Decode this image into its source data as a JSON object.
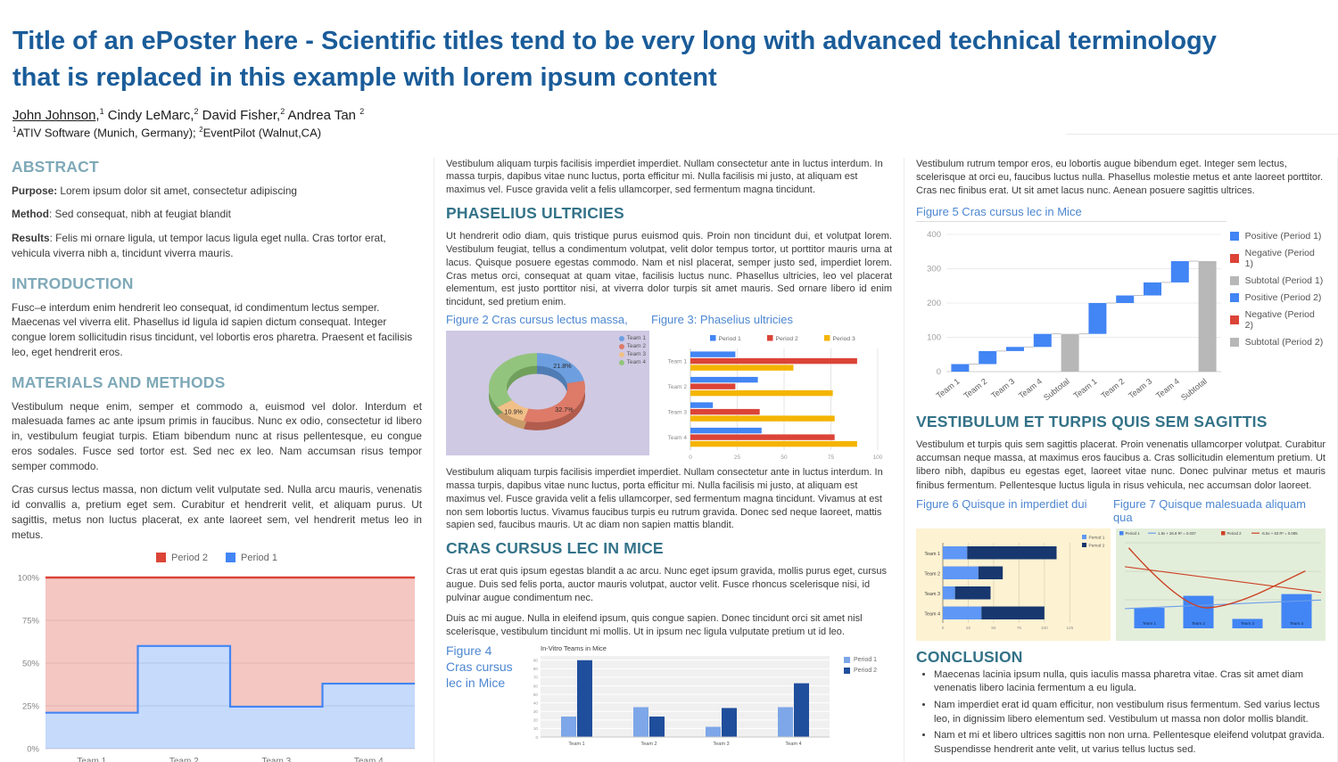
{
  "header": {
    "title": "Title of an ePoster here - Scientific titles tend to be very long with advanced technical terminology that is replaced in this example with lorem ipsum content",
    "authors": [
      {
        "name": "John Johnson",
        "sep": ",",
        "sup": "1",
        "underline": true
      },
      {
        "name": " Cindy LeMarc",
        "sep": ",",
        "sup": "2",
        "underline": false
      },
      {
        "name": " David Fisher",
        "sep": ",",
        "sup": "2",
        "underline": false
      },
      {
        "name": " Andrea Tan ",
        "sep": "",
        "sup": "2",
        "underline": false
      }
    ],
    "affiliations": [
      {
        "sup": "1",
        "text": "ATIV Software (Munich, Germany);  "
      },
      {
        "sup": "2",
        "text": "EventPilot (Walnut,CA)"
      }
    ]
  },
  "left": {
    "abstract": {
      "heading": "ABSTRACT",
      "purpose_label": "Purpose:",
      "purpose_text": " Lorem ipsum dolor sit amet, consectetur adipiscing",
      "method_label": "Method",
      "method_text": ": Sed consequat, nibh at feugiat blandit",
      "results_label": "Results",
      "results_text": ": Felis mi ornare ligula, ut tempor lacus ligula eget nulla. Cras tortor erat, vehicula viverra nibh a, tincidunt viverra mauris."
    },
    "introduction": {
      "heading": "INTRODUCTION",
      "text": "Fusc–e interdum enim hendrerit leo consequat, id condimentum lectus semper. Maecenas vel viverra elit. Phasellus id ligula id sapien dictum consequat. Integer congue lorem sollicitudin risus tincidunt, vel lobortis eros pharetra. Praesent et facilisis leo, eget hendrerit eros."
    },
    "methods": {
      "heading": "MATERIALS AND METHODS",
      "p1": "Vestibulum neque enim, semper et commodo a, euismod vel dolor. Interdum et malesuada fames ac ante ipsum primis in faucibus. Nunc ex odio, consectetur id libero in, vestibulum feugiat turpis. Etiam bibendum nunc at risus pellentesque, eu congue eros sodales. Fusce sed tortor est. Sed nec ex leo. Nam accumsan risus tempor semper commodo.",
      "p2": "Cras cursus lectus massa, non dictum velit vulputate sed. Nulla arcu mauris, venenatis id convallis a, pretium eget sem. Curabitur et hendrerit velit, et aliquam purus. Ut sagittis, metus non luctus placerat, ex ante laoreet sem, vel hendrerit metus leo in metus."
    }
  },
  "middle": {
    "intro_p": "Vestibulum aliquam turpis facilisis imperdiet imperdiet. Nullam consectetur ante in luctus interdum. In massa turpis, dapibus vitae nunc luctus, porta efficitur mi. Nulla facilisis mi justo, at aliquam est maximus vel. Fusce gravida velit a felis ullamcorper, sed fermentum magna tincidunt.",
    "phaselius": {
      "heading": "PHASELIUS ULTRICIES",
      "text": "Ut hendrerit odio diam, quis tristique purus euismod quis. Proin non tincidunt dui, et volutpat lorem. Vestibulum feugiat, tellus a condimentum volutpat, velit dolor tempus tortor, ut porttitor mauris urna at lacus. Quisque posuere egestas commodo. Nam et nisl placerat, semper justo sed, imperdiet lorem. Cras metus orci, consequat at quam vitae, facilisis luctus nunc. Phasellus ultricies, leo vel placerat elementum, est justo porttitor nisi, at viverra dolor turpis sit amet mauris. Sed ornare libero id enim tincidunt, sed pretium enim."
    },
    "fig2_caption": "Figure 2 Cras cursus lectus massa,",
    "fig3_caption": "Figure 3:  Phaselius ultricies",
    "after_figs_p": "Vestibulum aliquam turpis facilisis imperdiet imperdiet. Nullam consectetur ante in luctus interdum. In massa turpis, dapibus vitae nunc luctus, porta efficitur mi. Nulla facilisis mi justo, at aliquam est maximus vel. Fusce gravida velit a felis ullamcorper, sed fermentum magna tincidunt. Vivamus at est non sem lobortis luctus. Vivamus faucibus turpis eu rutrum gravida. Donec sed neque laoreet, mattis sapien sed, faucibus mauris. Ut ac diam non sapien mattis blandit.",
    "cras": {
      "heading": "CRAS CURSUS LEC IN MICE",
      "p1": "Cras ut erat quis ipsum egestas blandit a ac arcu. Nunc eget ipsum gravida, mollis purus eget, cursus augue. Duis sed felis porta, auctor mauris volutpat, auctor velit. Fusce rhoncus scelerisque nisi, id pulvinar augue condimentum nec.",
      "p2": "Duis ac mi augue. Nulla in eleifend ipsum, quis congue sapien. Donec tincidunt orci sit amet nisl scelerisque, vestibulum tincidunt mi mollis. Ut in ipsum nec ligula vulputate pretium ut id leo."
    },
    "fig4_caption": "Figure 4 Cras cursus lec in Mice"
  },
  "right": {
    "intro_p": "Vestibulum rutrum tempor eros, eu lobortis augue bibendum eget. Integer sem lectus, scelerisque at orci eu, faucibus luctus nulla. Phasellus molestie metus et ante laoreet porttitor. Cras nec finibus erat. Ut sit amet lacus nunc. Aenean posuere sagittis ultrices.",
    "fig5_caption": "Figure 5 Cras cursus lec in Mice",
    "vestibulum": {
      "heading": "VESTIBULUM ET TURPIS QUIS SEM SAGITTIS",
      "text": "Vestibulum et turpis quis sem sagittis placerat. Proin venenatis ullamcorper volutpat. Curabitur accumsan neque massa, at maximus eros faucibus a. Cras sollicitudin elementum pretium. Ut libero nibh, dapibus eu egestas eget, laoreet vitae nunc. Donec pulvinar metus et mauris finibus fermentum. Pellentesque luctus ligula in risus vehicula, nec accumsan dolor laoreet."
    },
    "fig6_caption": "Figure 6 Quisque in imperdiet dui",
    "fig7_caption": "Figure 7 Quisque malesuada aliquam qua",
    "conclusion": {
      "heading": "CONCLUSION",
      "bullets": [
        "Maecenas lacinia ipsum nulla, quis iaculis massa pharetra vitae. Cras sit amet diam venenatis libero lacinia fermentum a eu ligula.",
        "Nam imperdiet erat id quam efficitur, non vestibulum risus fermentum. Sed varius lectus leo, in dignissim libero elementum sed. Vestibulum ut massa non dolor mollis blandit.",
        "Nam et mi et libero ultrices sagittis non non urna. Pellentesque eleifend volutpat gravida. Suspendisse hendrerit ante velit, ut varius tellus luctus sed."
      ]
    }
  },
  "colors": {
    "title_blue": "#1a5c99",
    "heading_light": "#7fa9b8",
    "heading_dark": "#337288",
    "caption_blue": "#4d87d1",
    "chart_blue": "#4285f4",
    "chart_red": "#db4437",
    "chart_yellow": "#f4b400",
    "chart_gray": "#b7b7b7"
  },
  "chart_data": [
    {
      "id": "team-share-step-area",
      "type": "area",
      "title": "",
      "categories": [
        "Team 1",
        "Team 2",
        "Team 3",
        "Team 4"
      ],
      "series": [
        {
          "name": "Period 2",
          "color": "#db4437",
          "values": [
            79,
            40,
            75.5,
            62
          ]
        },
        {
          "name": "Period 1",
          "color": "#4285f4",
          "values": [
            21,
            60,
            24.5,
            38
          ]
        }
      ],
      "stacked_percent": true,
      "yticks": [
        "0%",
        "25%",
        "50%",
        "75%",
        "100%"
      ],
      "ylim": [
        0,
        100
      ],
      "legend": [
        {
          "label": "Period 2",
          "color": "#db4437"
        },
        {
          "label": "Period 1",
          "color": "#4285f4"
        }
      ],
      "legend_position": "top"
    },
    {
      "id": "team-share-donut",
      "type": "pie",
      "labels": [
        "Team 1",
        "Team 2",
        "Team 3",
        "Team 4"
      ],
      "values": [
        21.8,
        32.7,
        10.9,
        34.6
      ],
      "value_labels": [
        "21.8%",
        "32.7%",
        "10.9%",
        ""
      ],
      "colors": [
        "#6d9fe0",
        "#dd7a68",
        "#f1c088",
        "#93c47d"
      ],
      "depth_colors": [
        "#507cb4",
        "#b15c4d",
        "#c79a67",
        "#71a05c"
      ],
      "background": "#cfc9e3",
      "donut": true,
      "legend_position": "right"
    },
    {
      "id": "phaselius-grouped-bars",
      "type": "bar",
      "orientation": "horizontal",
      "categories": [
        "Team 1",
        "Team 2",
        "Team 3",
        "Team 4"
      ],
      "series": [
        {
          "name": "Period 1",
          "color": "#4285f4",
          "values": [
            24,
            36,
            12,
            38
          ]
        },
        {
          "name": "Period 2",
          "color": "#db4437",
          "values": [
            89,
            24,
            37,
            77
          ]
        },
        {
          "name": "Period 3",
          "color": "#f4b400",
          "values": [
            55,
            76,
            77,
            89
          ]
        }
      ],
      "xticks": [
        0,
        25,
        50,
        75,
        100
      ],
      "xlim": [
        0,
        100
      ],
      "legend_position": "top"
    },
    {
      "id": "invitro-teams",
      "type": "bar",
      "orientation": "vertical",
      "title": "In-Vitro Teams in Mice",
      "categories": [
        "Team 1",
        "Team 2",
        "Team 3",
        "Team 4"
      ],
      "series": [
        {
          "name": "Period 1",
          "color": "#7da7e8",
          "values": [
            24,
            35,
            12,
            35
          ]
        },
        {
          "name": "Period 2",
          "color": "#1f4e9c",
          "values": [
            90,
            24,
            34,
            63
          ]
        }
      ],
      "yticks": [
        0,
        10,
        20,
        30,
        40,
        50,
        60,
        70,
        80,
        90
      ],
      "ylim": [
        0,
        95
      ],
      "plot_background": "#f0f0f0",
      "legend_position": "right"
    },
    {
      "id": "waterfall-mice",
      "type": "waterfall",
      "categories": [
        "Team 1",
        "Team 2",
        "Team 3",
        "Team 4",
        "Subtotal",
        "Team 1",
        "Team 2",
        "Team 3",
        "Team 4",
        "Subtotal"
      ],
      "steps": [
        {
          "from": 0,
          "to": 22,
          "kind": "positive"
        },
        {
          "from": 22,
          "to": 60,
          "kind": "positive"
        },
        {
          "from": 60,
          "to": 72,
          "kind": "positive"
        },
        {
          "from": 72,
          "to": 110,
          "kind": "positive"
        },
        {
          "from": 0,
          "to": 110,
          "kind": "subtotal"
        },
        {
          "from": 110,
          "to": 200,
          "kind": "positive"
        },
        {
          "from": 200,
          "to": 222,
          "kind": "positive"
        },
        {
          "from": 222,
          "to": 260,
          "kind": "positive"
        },
        {
          "from": 260,
          "to": 322,
          "kind": "positive"
        },
        {
          "from": 0,
          "to": 322,
          "kind": "subtotal"
        }
      ],
      "yticks": [
        0,
        100,
        200,
        300,
        400
      ],
      "ylim": [
        0,
        400
      ],
      "colors": {
        "positive": "#4285f4",
        "negative": "#db4437",
        "subtotal": "#b7b7b7"
      },
      "legend": [
        {
          "label": "Positive (Period 1)",
          "color": "#4285f4"
        },
        {
          "label": "Negative (Period 1)",
          "color": "#db4437"
        },
        {
          "label": "Subtotal (Period 1)",
          "color": "#b7b7b7"
        },
        {
          "label": "Positive (Period 2)",
          "color": "#4285f4"
        },
        {
          "label": "Negative (Period 2)",
          "color": "#db4437"
        },
        {
          "label": "Subtotal (Period 2)",
          "color": "#b7b7b7"
        }
      ],
      "legend_position": "right"
    },
    {
      "id": "quisque-stacked-bars",
      "type": "bar",
      "orientation": "horizontal",
      "stacked": true,
      "background": "#fdf2d2",
      "categories": [
        "Team 1",
        "Team 2",
        "Team 3",
        "Team 4"
      ],
      "series": [
        {
          "name": "Period 1",
          "color": "#5e97f5",
          "values": [
            24,
            35,
            12,
            38
          ]
        },
        {
          "name": "Period 2",
          "color": "#17376e",
          "values": [
            88,
            24,
            35,
            62
          ]
        }
      ],
      "xticks": [
        0,
        25,
        50,
        75,
        100,
        125
      ],
      "xlim": [
        0,
        130
      ],
      "legend_position": "top-right"
    },
    {
      "id": "quisque-combo",
      "type": "combo",
      "background": "#e3eeda",
      "categories": [
        "Team 1",
        "Team 2",
        "Team 3",
        "Team 4"
      ],
      "bars": {
        "name": "Period 1",
        "color": "#4285f4",
        "values": [
          24,
          38,
          11,
          40
        ]
      },
      "lines": [
        {
          "name": "1.8x + 26.8 R² = 0.037",
          "color": "#6d9eeb",
          "style": "straight",
          "points": [
            [
              0,
              23
            ],
            [
              100,
              33
            ]
          ]
        },
        {
          "name": "Period 2",
          "color": "#cc4125",
          "style": "curve",
          "points": [
            [
              2,
              94
            ],
            [
              30,
              22
            ],
            [
              55,
              26
            ],
            [
              92,
              67
            ]
          ]
        },
        {
          "name": "-6.5x + 63 R² = 0.085",
          "color": "#cc4125",
          "style": "straight",
          "points": [
            [
              0,
              72
            ],
            [
              100,
              42
            ]
          ]
        }
      ],
      "ylim": [
        0,
        100
      ],
      "legend": [
        {
          "label": "Period 1",
          "swatch": "rect",
          "color": "#4285f4"
        },
        {
          "label": "1.8x + 26.8 R² = 0.037",
          "swatch": "line",
          "color": "#6d9eeb"
        },
        {
          "label": "Period 2",
          "swatch": "rect",
          "color": "#cc4125"
        },
        {
          "label": "-6.5x + 63 R² = 0.085",
          "swatch": "line",
          "color": "#cc4125"
        }
      ]
    }
  ]
}
